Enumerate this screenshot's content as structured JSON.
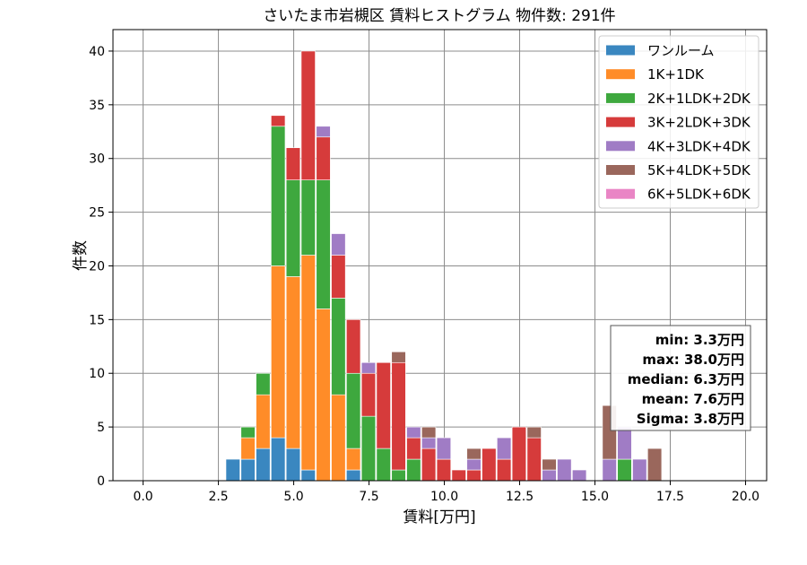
{
  "chart_data": {
    "type": "bar",
    "stacked": true,
    "title": "さいたま市岩槻区 賃料ヒストグラム  物件数: 291件",
    "xlabel": "賃料[万円]",
    "ylabel": "件数",
    "xlim": [
      -1.0,
      20.7
    ],
    "ylim": [
      0,
      42
    ],
    "xticks": [
      0.0,
      2.5,
      5.0,
      7.5,
      10.0,
      12.5,
      15.0,
      17.5,
      20.0
    ],
    "xtick_labels": [
      "0.0",
      "2.5",
      "5.0",
      "7.5",
      "10.0",
      "12.5",
      "15.0",
      "17.5",
      "20.0"
    ],
    "yticks": [
      0,
      5,
      10,
      15,
      20,
      25,
      30,
      35,
      40
    ],
    "ytick_labels": [
      "0",
      "5",
      "10",
      "15",
      "20",
      "25",
      "30",
      "35",
      "40"
    ],
    "grid": true,
    "legend_position": "top-right",
    "bin_width": 0.5,
    "bin_starts": [
      2.75,
      3.25,
      3.75,
      4.25,
      4.75,
      5.25,
      5.75,
      6.25,
      6.75,
      7.25,
      7.75,
      8.25,
      8.75,
      9.25,
      9.75,
      10.25,
      10.75,
      11.25,
      11.75,
      12.25,
      12.75,
      13.25,
      13.75,
      14.25,
      14.75,
      15.25,
      15.75,
      16.25,
      16.75
    ],
    "series": [
      {
        "name": "ワンルーム",
        "color": "#3a87c0",
        "values": [
          2,
          2,
          3,
          4,
          3,
          1,
          0,
          0,
          1,
          0,
          0,
          0,
          0,
          0,
          0,
          0,
          0,
          0,
          0,
          0,
          0,
          0,
          0,
          0,
          0,
          0,
          0,
          0,
          0
        ]
      },
      {
        "name": "1K+1DK",
        "color": "#ff8c28",
        "values": [
          0,
          2,
          5,
          16,
          16,
          20,
          16,
          8,
          2,
          0,
          0,
          0,
          0,
          0,
          0,
          0,
          0,
          0,
          0,
          0,
          0,
          0,
          0,
          0,
          0,
          0,
          0,
          0,
          0
        ]
      },
      {
        "name": "2K+1LDK+2DK",
        "color": "#3ea83e",
        "values": [
          0,
          1,
          2,
          13,
          9,
          7,
          12,
          9,
          7,
          6,
          3,
          1,
          2,
          0,
          0,
          0,
          0,
          0,
          0,
          0,
          0,
          0,
          0,
          0,
          0,
          0,
          2,
          0,
          0
        ]
      },
      {
        "name": "3K+2LDK+3DK",
        "color": "#d63b3b",
        "values": [
          0,
          0,
          0,
          1,
          3,
          12,
          4,
          4,
          5,
          4,
          8,
          10,
          2,
          3,
          2,
          1,
          1,
          3,
          2,
          5,
          4,
          0,
          0,
          0,
          0,
          0,
          0,
          0,
          0
        ]
      },
      {
        "name": "4K+3LDK+4DK",
        "color": "#a07cc5",
        "values": [
          0,
          0,
          0,
          0,
          0,
          0,
          1,
          2,
          0,
          1,
          0,
          0,
          1,
          1,
          2,
          0,
          1,
          0,
          2,
          0,
          0,
          1,
          2,
          1,
          0,
          2,
          3,
          2,
          0
        ]
      },
      {
        "name": "5K+4LDK+5DK",
        "color": "#9a675c",
        "values": [
          0,
          0,
          0,
          0,
          0,
          0,
          0,
          0,
          0,
          0,
          0,
          1,
          0,
          1,
          0,
          0,
          1,
          0,
          0,
          0,
          1,
          1,
          0,
          0,
          0,
          5,
          0,
          0,
          3
        ]
      },
      {
        "name": "6K+5LDK+6DK",
        "color": "#e985c5",
        "values": [
          0,
          0,
          0,
          0,
          0,
          0,
          0,
          0,
          0,
          0,
          0,
          0,
          0,
          0,
          0,
          0,
          0,
          0,
          0,
          0,
          0,
          0,
          0,
          0,
          0,
          0,
          0,
          0,
          0
        ]
      }
    ],
    "stats_lines": [
      "min: 3.3万円",
      "max: 38.0万円",
      "median: 6.3万円",
      "mean: 7.6万円",
      "Sigma: 3.8万円"
    ]
  }
}
